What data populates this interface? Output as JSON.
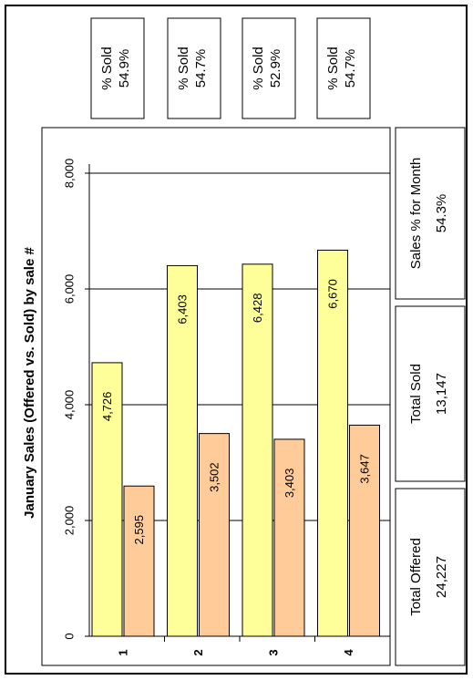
{
  "chart_data": {
    "type": "bar",
    "title": "January Sales (Offered vs. Sold) by sale #",
    "categories": [
      "1",
      "2",
      "3",
      "4"
    ],
    "series": [
      {
        "name": "Offered",
        "values": [
          4726,
          6403,
          6428,
          6670
        ],
        "labels": [
          "4,726",
          "6,403",
          "6,428",
          "6,670"
        ],
        "color": "#FFFF99"
      },
      {
        "name": "Sold",
        "values": [
          2595,
          3502,
          3403,
          3647
        ],
        "labels": [
          "2,595",
          "3,502",
          "3,403",
          "3,647"
        ],
        "color": "#FFCC99"
      }
    ],
    "ylim": [
      0,
      8000
    ],
    "yticks": [
      0,
      2000,
      4000,
      6000,
      8000
    ],
    "ytick_labels": [
      "0",
      "2,000",
      "4,000",
      "6,000",
      "8,000"
    ],
    "grid": true,
    "orientation": "rotated 90° counter-clockwise"
  },
  "pct_sold_boxes": [
    {
      "label": "% Sold",
      "value": "54.9%"
    },
    {
      "label": "% Sold",
      "value": "54.7%"
    },
    {
      "label": "% Sold",
      "value": "52.9%"
    },
    {
      "label": "% Sold",
      "value": "54.7%"
    }
  ],
  "summary": {
    "month_pct": {
      "label": "Sales % for Month",
      "value": "54.3%"
    },
    "total_sold": {
      "label": "Total Sold",
      "value": "13,147"
    },
    "total_offered": {
      "label": "Total Offered",
      "value": "24,227"
    }
  }
}
